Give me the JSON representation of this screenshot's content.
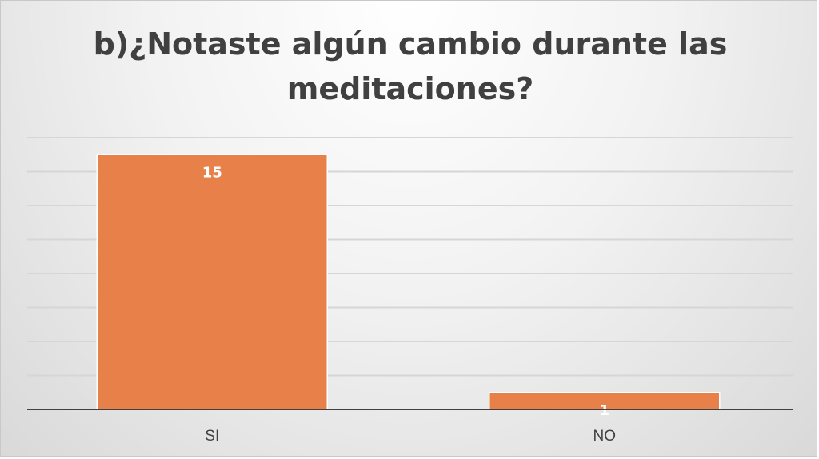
{
  "chart_data": {
    "type": "bar",
    "title": "b)¿Notaste algún cambio durante las meditaciones?",
    "categories": [
      "SI",
      "NO"
    ],
    "values": [
      15,
      1
    ],
    "data_labels": [
      "15",
      "1"
    ],
    "ylim": [
      0,
      16
    ],
    "gridlines": true,
    "legend": "none",
    "bar_color": "#e8804a",
    "label_color": "#ffffff"
  }
}
